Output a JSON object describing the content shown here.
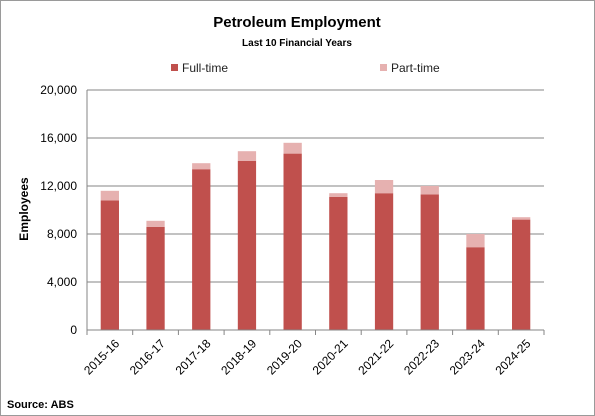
{
  "chart_data": {
    "type": "bar",
    "stacked": true,
    "title": "Petroleum Employment",
    "subtitle": "Last 10 Financial Years",
    "xlabel": "",
    "ylabel": "Employees",
    "ylim": [
      0,
      20000
    ],
    "yticks": [
      0,
      4000,
      8000,
      12000,
      16000,
      20000
    ],
    "ytick_labels": [
      "0",
      "4,000",
      "8,000",
      "12,000",
      "16,000",
      "20,000"
    ],
    "grid": true,
    "legend_position": "top",
    "categories": [
      "2015-16",
      "2016-17",
      "2017-18",
      "2018-19",
      "2019-20",
      "2020-21",
      "2021-22",
      "2022-23",
      "2023-24",
      "2024-25"
    ],
    "series": [
      {
        "name": "Full-time",
        "color": "#c0504d",
        "values": [
          10800,
          8600,
          13400,
          14100,
          14700,
          11100,
          11400,
          11300,
          6900,
          9200
        ]
      },
      {
        "name": "Part-time",
        "color": "#e6b1b0",
        "values": [
          800,
          500,
          500,
          800,
          900,
          300,
          1100,
          700,
          1100,
          200
        ]
      }
    ],
    "source": "Source: ABS"
  }
}
